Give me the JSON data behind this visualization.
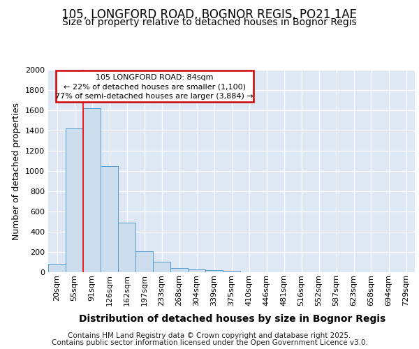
{
  "title": "105, LONGFORD ROAD, BOGNOR REGIS, PO21 1AE",
  "subtitle": "Size of property relative to detached houses in Bognor Regis",
  "xlabel": "Distribution of detached houses by size in Bognor Regis",
  "ylabel": "Number of detached properties",
  "categories": [
    "20sqm",
    "55sqm",
    "91sqm",
    "126sqm",
    "162sqm",
    "197sqm",
    "233sqm",
    "268sqm",
    "304sqm",
    "339sqm",
    "375sqm",
    "410sqm",
    "446sqm",
    "481sqm",
    "516sqm",
    "552sqm",
    "587sqm",
    "623sqm",
    "658sqm",
    "694sqm",
    "729sqm"
  ],
  "values": [
    80,
    1420,
    1620,
    1050,
    490,
    205,
    105,
    40,
    30,
    20,
    17,
    0,
    0,
    0,
    0,
    0,
    0,
    0,
    0,
    0,
    0
  ],
  "bar_color": "#ccdded",
  "bar_edge_color": "#5599cc",
  "redline_x": 1.5,
  "annotation_title": "105 LONGFORD ROAD: 84sqm",
  "annotation_line1": "← 22% of detached houses are smaller (1,100)",
  "annotation_line2": "77% of semi-detached houses are larger (3,884) →",
  "annotation_box_color": "#ffffff",
  "annotation_box_edge": "#cc0000",
  "footer_line1": "Contains HM Land Registry data © Crown copyright and database right 2025.",
  "footer_line2": "Contains public sector information licensed under the Open Government Licence v3.0.",
  "ylim": [
    0,
    2000
  ],
  "fig_bg_color": "#ffffff",
  "plot_bg_color": "#dde8f4",
  "grid_color": "#ffffff",
  "title_fontsize": 12,
  "subtitle_fontsize": 10,
  "xlabel_fontsize": 10,
  "ylabel_fontsize": 9,
  "tick_fontsize": 8,
  "footer_fontsize": 7.5,
  "yticks": [
    0,
    200,
    400,
    600,
    800,
    1000,
    1200,
    1400,
    1600,
    1800,
    2000
  ]
}
